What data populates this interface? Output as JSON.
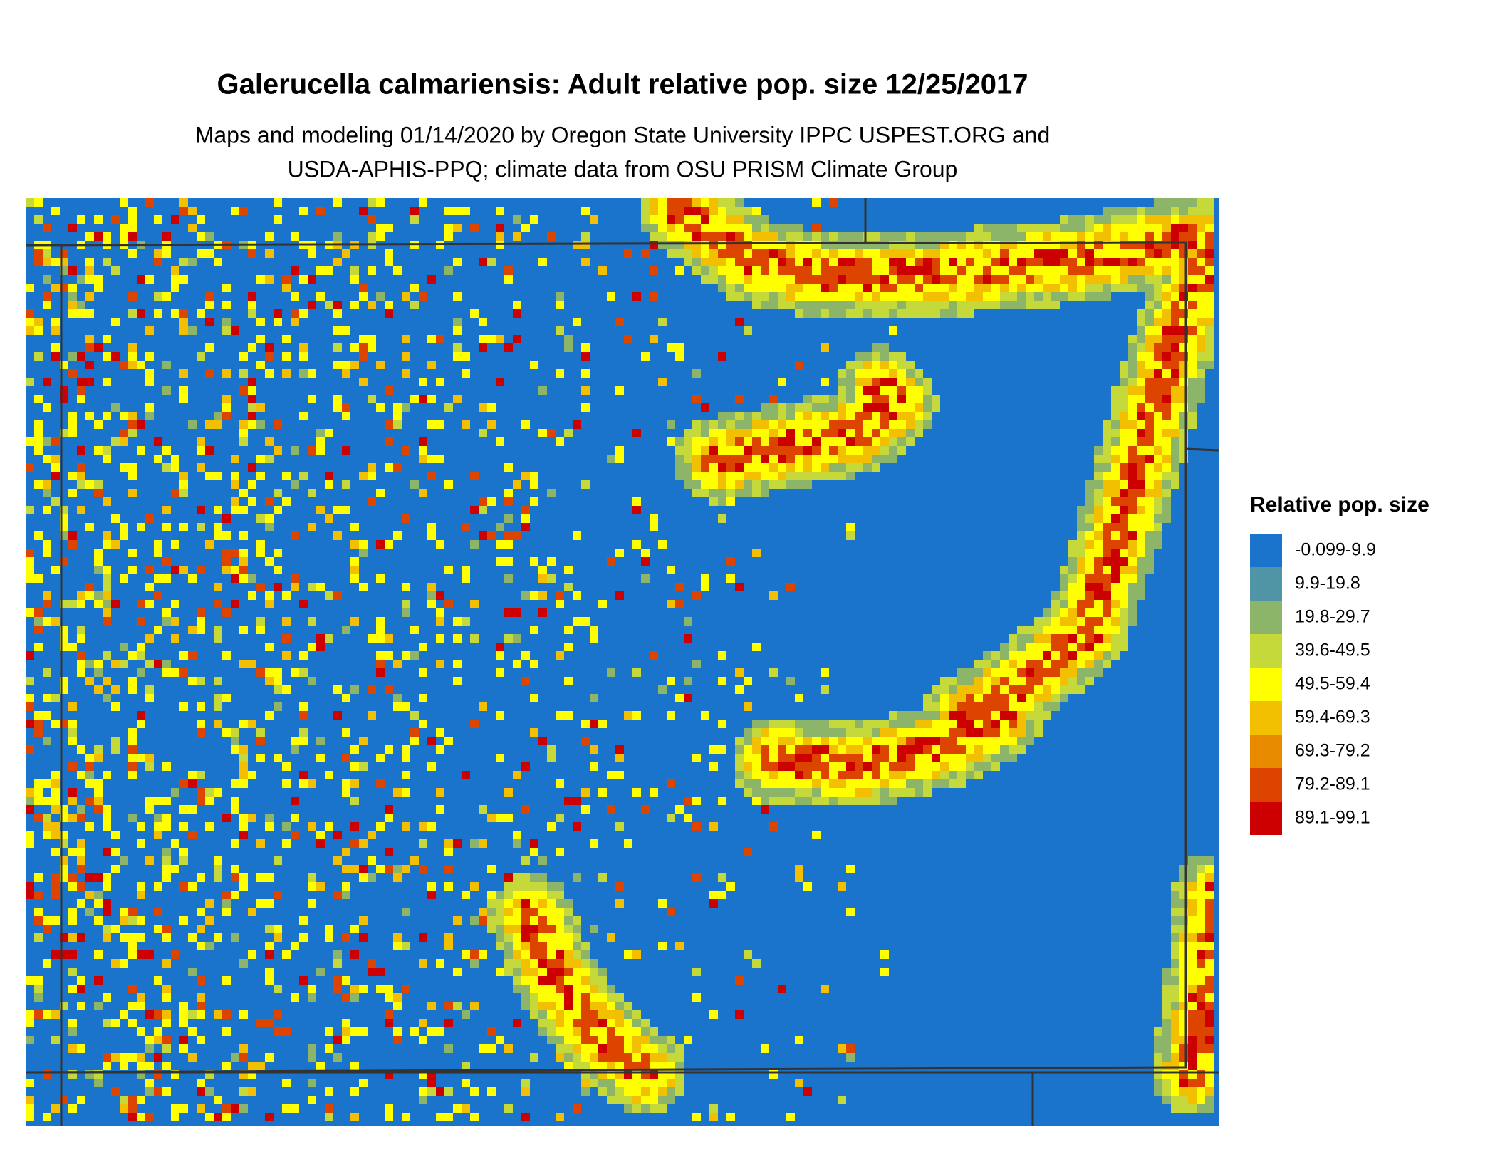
{
  "header": {
    "title": "Galerucella calmariensis: Adult relative pop. size 12/25/2017",
    "subtitle": [
      "Maps and modeling 01/14/2020 by Oregon State University IPPC USPEST.ORG and",
      "USDA-APHIS-PPQ; climate data from OSU PRISM Climate Group"
    ]
  },
  "legend": {
    "title": "Relative pop. size",
    "items": [
      {
        "label": "-0.099-9.9",
        "color": "#1a74cc"
      },
      {
        "label": "9.9-19.8",
        "color": "#4f95a6"
      },
      {
        "label": "19.8-29.7",
        "color": "#8cb56a"
      },
      {
        "label": "39.6-49.5",
        "color": "#c6d93a"
      },
      {
        "label": "49.5-59.4",
        "color": "#ffff00"
      },
      {
        "label": "59.4-69.3",
        "color": "#f2c000"
      },
      {
        "label": "69.3-79.2",
        "color": "#e88a00"
      },
      {
        "label": "79.2-89.1",
        "color": "#dd4400"
      },
      {
        "label": "89.1-99.1",
        "color": "#cc0000"
      }
    ]
  }
}
